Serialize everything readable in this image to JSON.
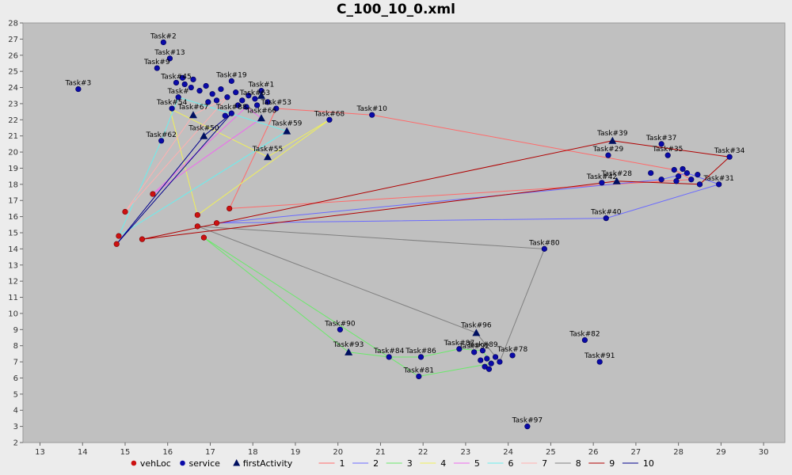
{
  "chart_data": {
    "type": "scatter",
    "title": "C_100_10_0.xml",
    "xlabel": "",
    "ylabel": "",
    "xlim": [
      12.6,
      30.5
    ],
    "ylim": [
      2,
      28
    ],
    "xticks": [
      13,
      14,
      15,
      16,
      17,
      18,
      19,
      20,
      21,
      22,
      23,
      24,
      25,
      26,
      27,
      28,
      29,
      30
    ],
    "yticks": [
      2,
      3,
      4,
      5,
      6,
      7,
      8,
      9,
      10,
      11,
      12,
      13,
      14,
      15,
      16,
      17,
      18,
      19,
      20,
      21,
      22,
      23,
      24,
      25,
      26,
      27,
      28
    ],
    "grid": false,
    "legend_position": "bottom",
    "background_color": "#c0c0c0",
    "marker_colors": {
      "vehLoc": "#cc1111",
      "service": "#0a0aa8",
      "firstActivity": "#001060"
    },
    "series_colors": {
      "1": "#ff6a6a",
      "2": "#6a6aff",
      "3": "#6ae96a",
      "4": "#f0f05a",
      "5": "#ee6aee",
      "6": "#6aeeee",
      "7": "#ffb0b0",
      "8": "#808080",
      "9": "#b00000",
      "10": "#00008b"
    },
    "legend": [
      {
        "label": "vehLoc",
        "kind": "circle",
        "color": "#cc1111"
      },
      {
        "label": "service",
        "kind": "circle",
        "color": "#0a0aa8"
      },
      {
        "label": "firstActivity",
        "kind": "triangle",
        "color": "#001060"
      },
      {
        "label": "1",
        "kind": "line",
        "color": "#ff6a6a"
      },
      {
        "label": "2",
        "kind": "line",
        "color": "#6a6aff"
      },
      {
        "label": "3",
        "kind": "line",
        "color": "#6ae96a"
      },
      {
        "label": "4",
        "kind": "line",
        "color": "#f0f05a"
      },
      {
        "label": "5",
        "kind": "line",
        "color": "#ee6aee"
      },
      {
        "label": "6",
        "kind": "line",
        "color": "#6aeeee"
      },
      {
        "label": "7",
        "kind": "line",
        "color": "#ffb0b0"
      },
      {
        "label": "8",
        "kind": "line",
        "color": "#808080"
      },
      {
        "label": "9",
        "kind": "line",
        "color": "#b00000"
      },
      {
        "label": "10",
        "kind": "line",
        "color": "#00008b"
      }
    ],
    "vehLoc": [
      [
        14.8,
        14.3
      ],
      [
        14.85,
        14.8
      ],
      [
        15.0,
        16.3
      ],
      [
        15.4,
        14.6
      ],
      [
        15.65,
        17.4
      ],
      [
        16.7,
        16.1
      ],
      [
        16.7,
        15.4
      ],
      [
        16.85,
        14.7
      ],
      [
        17.15,
        15.6
      ],
      [
        17.45,
        16.5
      ]
    ],
    "service": [
      {
        "label": "Task#2",
        "x": 15.9,
        "y": 26.8
      },
      {
        "label": "Task#13",
        "x": 16.05,
        "y": 25.8
      },
      {
        "label": "Task#9",
        "x": 15.75,
        "y": 25.2
      },
      {
        "label": "Task#3",
        "x": 13.9,
        "y": 23.9
      },
      {
        "label": "Task#10",
        "x": 20.8,
        "y": 22.3
      },
      {
        "label": "Task#68",
        "x": 19.8,
        "y": 22.0
      },
      {
        "label": "Task#62",
        "x": 15.85,
        "y": 20.7
      },
      {
        "label": "Task#37",
        "x": 27.6,
        "y": 20.5
      },
      {
        "label": "Task#35",
        "x": 27.75,
        "y": 19.8
      },
      {
        "label": "Task#34",
        "x": 29.2,
        "y": 19.7
      },
      {
        "label": "Task#29",
        "x": 26.35,
        "y": 19.8
      },
      {
        "label": "Task#42",
        "x": 26.2,
        "y": 18.1
      },
      {
        "label": "Task#31",
        "x": 28.95,
        "y": 18.0
      },
      {
        "label": "Task#40",
        "x": 26.3,
        "y": 15.9
      },
      {
        "label": "Task#80",
        "x": 24.85,
        "y": 14.0
      },
      {
        "label": "Task#90",
        "x": 20.05,
        "y": 9.0
      },
      {
        "label": "Task#82",
        "x": 25.8,
        "y": 8.35
      },
      {
        "label": "Task#91",
        "x": 26.15,
        "y": 7.0
      },
      {
        "label": "Task#84",
        "x": 21.2,
        "y": 7.3
      },
      {
        "label": "Task#86",
        "x": 21.95,
        "y": 7.3
      },
      {
        "label": "Task#81",
        "x": 21.9,
        "y": 6.1
      },
      {
        "label": "Task#78",
        "x": 24.1,
        "y": 7.4
      },
      {
        "label": "Task#89",
        "x": 23.4,
        "y": 7.7
      },
      {
        "label": "Task#92",
        "x": 23.2,
        "y": 7.6
      },
      {
        "label": "Task#87",
        "x": 22.85,
        "y": 7.8
      },
      {
        "label": "Task#97",
        "x": 24.45,
        "y": 3.0
      },
      {
        "label": "Task#1",
        "x": 18.2,
        "y": 23.8
      },
      {
        "label": "Task#63",
        "x": 18.05,
        "y": 23.3
      },
      {
        "label": "Task#19",
        "x": 17.5,
        "y": 24.4
      },
      {
        "label": "Task#53",
        "x": 18.55,
        "y": 22.7
      },
      {
        "label": "Task#54",
        "x": 16.1,
        "y": 22.7
      },
      {
        "label": "Task#88",
        "x": 17.5,
        "y": 22.4
      },
      {
        "label": "Task#",
        "x": 16.25,
        "y": 23.4
      },
      {
        "label": "Task#45",
        "x": 16.2,
        "y": 24.3
      },
      {
        "label": "",
        "x": 16.4,
        "y": 24.2
      },
      {
        "label": "",
        "x": 16.55,
        "y": 24.0
      },
      {
        "label": "",
        "x": 16.75,
        "y": 23.8
      },
      {
        "label": "",
        "x": 16.9,
        "y": 24.1
      },
      {
        "label": "",
        "x": 17.05,
        "y": 23.6
      },
      {
        "label": "",
        "x": 17.25,
        "y": 23.9
      },
      {
        "label": "",
        "x": 17.4,
        "y": 23.4
      },
      {
        "label": "",
        "x": 17.6,
        "y": 23.7
      },
      {
        "label": "",
        "x": 17.75,
        "y": 23.2
      },
      {
        "label": "",
        "x": 17.9,
        "y": 23.5
      },
      {
        "label": "",
        "x": 17.65,
        "y": 22.9
      },
      {
        "label": "",
        "x": 17.85,
        "y": 22.8
      },
      {
        "label": "",
        "x": 16.95,
        "y": 23.1
      },
      {
        "label": "",
        "x": 17.15,
        "y": 23.2
      },
      {
        "label": "",
        "x": 16.35,
        "y": 24.6
      },
      {
        "label": "",
        "x": 16.6,
        "y": 24.5
      },
      {
        "label": "",
        "x": 18.35,
        "y": 23.1
      },
      {
        "label": "",
        "x": 18.1,
        "y": 22.9
      },
      {
        "label": "",
        "x": 17.35,
        "y": 22.25
      },
      {
        "label": "",
        "x": 27.35,
        "y": 18.7
      },
      {
        "label": "",
        "x": 27.6,
        "y": 18.3
      },
      {
        "label": "",
        "x": 27.9,
        "y": 18.9
      },
      {
        "label": "",
        "x": 28.0,
        "y": 18.5
      },
      {
        "label": "",
        "x": 28.2,
        "y": 18.7
      },
      {
        "label": "",
        "x": 28.3,
        "y": 18.3
      },
      {
        "label": "",
        "x": 28.45,
        "y": 18.6
      },
      {
        "label": "",
        "x": 28.5,
        "y": 18.0
      },
      {
        "label": "",
        "x": 27.95,
        "y": 18.2
      },
      {
        "label": "",
        "x": 28.1,
        "y": 18.95
      },
      {
        "label": "",
        "x": 23.35,
        "y": 7.1
      },
      {
        "label": "",
        "x": 23.5,
        "y": 7.2
      },
      {
        "label": "",
        "x": 23.6,
        "y": 6.9
      },
      {
        "label": "",
        "x": 23.7,
        "y": 7.3
      },
      {
        "label": "",
        "x": 23.8,
        "y": 7.0
      },
      {
        "label": "",
        "x": 23.45,
        "y": 6.7
      },
      {
        "label": "",
        "x": 23.55,
        "y": 6.55
      }
    ],
    "firstActivity": [
      {
        "label": "Task#39",
        "x": 26.45,
        "y": 20.7
      },
      {
        "label": "Task#28",
        "x": 26.55,
        "y": 18.2
      },
      {
        "label": "Task#96",
        "x": 23.25,
        "y": 8.8
      },
      {
        "label": "Task#93",
        "x": 20.25,
        "y": 7.6
      },
      {
        "label": "Task#55",
        "x": 18.35,
        "y": 19.7
      },
      {
        "label": "Task#59",
        "x": 18.8,
        "y": 21.3
      },
      {
        "label": "Task#50",
        "x": 16.85,
        "y": 21.0
      },
      {
        "label": "Task#67",
        "x": 16.6,
        "y": 22.3
      },
      {
        "label": "Task#66",
        "x": 18.2,
        "y": 22.1
      },
      {
        "label": "",
        "x": 18.2,
        "y": 23.5
      }
    ],
    "routes": [
      {
        "name": "1",
        "points": [
          [
            17.45,
            16.5
          ],
          [
            28.3,
            18.3
          ],
          [
            27.9,
            18.9
          ],
          [
            20.8,
            22.3
          ],
          [
            18.55,
            22.7
          ],
          [
            17.45,
            16.5
          ]
        ]
      },
      {
        "name": "2",
        "points": [
          [
            17.15,
            15.6
          ],
          [
            26.3,
            15.9
          ],
          [
            28.95,
            18.0
          ],
          [
            28.2,
            18.7
          ],
          [
            27.6,
            18.3
          ],
          [
            17.15,
            15.6
          ]
        ]
      },
      {
        "name": "3",
        "points": [
          [
            16.85,
            14.7
          ],
          [
            20.25,
            7.6
          ],
          [
            21.2,
            7.3
          ],
          [
            21.95,
            7.3
          ],
          [
            22.85,
            7.8
          ],
          [
            23.4,
            7.7
          ],
          [
            23.6,
            6.9
          ],
          [
            21.9,
            6.1
          ],
          [
            16.85,
            14.7
          ]
        ]
      },
      {
        "name": "4",
        "points": [
          [
            16.7,
            16.1
          ],
          [
            19.8,
            22.0
          ],
          [
            18.35,
            19.7
          ],
          [
            16.05,
            22.7
          ],
          [
            16.7,
            16.1
          ]
        ]
      },
      {
        "name": "5",
        "points": [
          [
            15.65,
            17.4
          ],
          [
            18.2,
            22.1
          ],
          [
            17.85,
            22.8
          ],
          [
            15.65,
            17.4
          ]
        ]
      },
      {
        "name": "6",
        "points": [
          [
            14.85,
            14.8
          ],
          [
            18.8,
            21.3
          ],
          [
            16.25,
            23.4
          ],
          [
            15.85,
            20.7
          ],
          [
            14.85,
            14.8
          ]
        ]
      },
      {
        "name": "7",
        "points": [
          [
            15.0,
            16.3
          ],
          [
            17.4,
            23.4
          ],
          [
            16.6,
            22.3
          ],
          [
            15.0,
            16.3
          ]
        ]
      },
      {
        "name": "8",
        "points": [
          [
            16.7,
            15.4
          ],
          [
            24.85,
            14.0
          ],
          [
            23.8,
            7.0
          ],
          [
            23.25,
            8.8
          ],
          [
            16.7,
            15.4
          ]
        ]
      },
      {
        "name": "9",
        "points": [
          [
            15.4,
            14.6
          ],
          [
            26.45,
            20.7
          ],
          [
            29.2,
            19.7
          ],
          [
            28.5,
            18.0
          ],
          [
            26.55,
            18.2
          ],
          [
            15.4,
            14.6
          ]
        ]
      },
      {
        "name": "10",
        "points": [
          [
            14.8,
            14.3
          ],
          [
            16.85,
            21.0
          ],
          [
            17.5,
            22.4
          ],
          [
            14.8,
            14.3
          ]
        ]
      }
    ]
  }
}
